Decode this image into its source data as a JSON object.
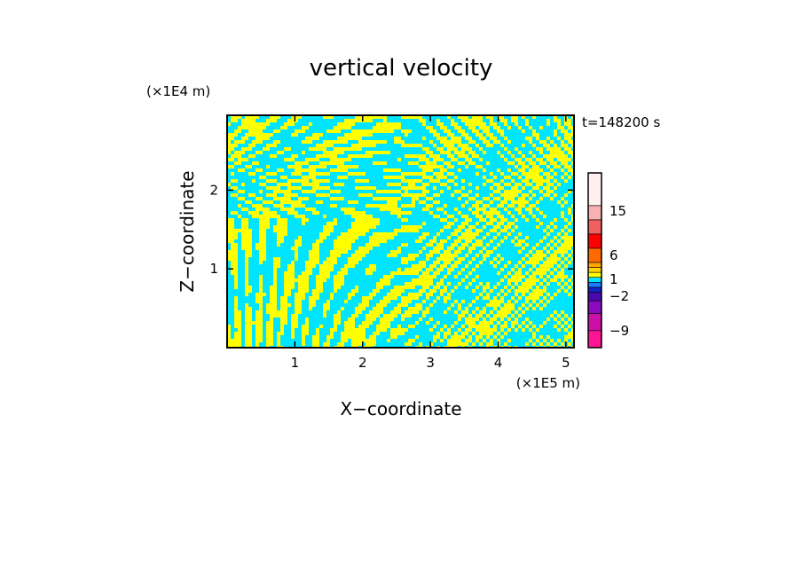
{
  "chart_data": {
    "type": "heatmap",
    "title": "vertical velocity",
    "xlabel": "X−coordinate",
    "ylabel": "Z−coordinate",
    "x_unit": "(×1E5 m)",
    "y_unit": "(×1E4 m)",
    "time_label": "t=148200 s",
    "xlim": [
      0,
      5.12
    ],
    "ylim": [
      0,
      2.95
    ],
    "x_ticks": [
      1,
      2,
      3,
      4,
      5
    ],
    "y_ticks": [
      1,
      2
    ],
    "colorbar": {
      "tick_labels": [
        {
          "value": 15,
          "label": "15"
        },
        {
          "value": 6,
          "label": "6"
        },
        {
          "value": 1,
          "label": "1"
        },
        {
          "value": -2,
          "label": "−2"
        },
        {
          "value": -9,
          "label": "−9"
        }
      ],
      "levels": [
        {
          "color": "#ff1493"
        },
        {
          "color": "#cc0fa8"
        },
        {
          "color": "#8a0bbd"
        },
        {
          "color": "#4a08b0"
        },
        {
          "color": "#1422c8"
        },
        {
          "color": "#1a7cff"
        },
        {
          "color": "#00e5ff"
        },
        {
          "color": "#ffff00"
        },
        {
          "color": "#ffd400"
        },
        {
          "color": "#ffa500"
        },
        {
          "color": "#ff6a00"
        },
        {
          "color": "#ff0000"
        },
        {
          "color": "#f06060"
        },
        {
          "color": "#f8b0b0"
        },
        {
          "color": "#fff0ee"
        }
      ]
    },
    "field_colors": {
      "positive": "#ffff00",
      "negative": "#00e5ff"
    }
  }
}
